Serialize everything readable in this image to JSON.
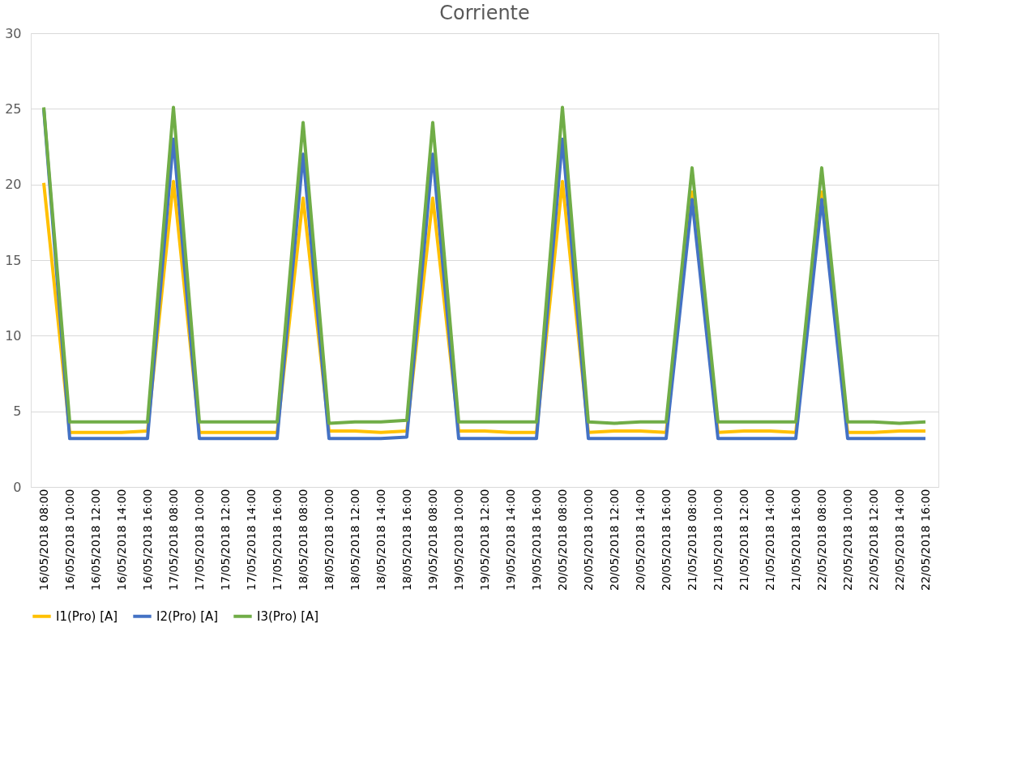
{
  "chart_data": {
    "type": "line",
    "title": "Corriente",
    "categories": [
      "16/05/2018 08:00",
      "16/05/2018 10:00",
      "16/05/2018 12:00",
      "16/05/2018 14:00",
      "16/05/2018 16:00",
      "17/05/2018 08:00",
      "17/05/2018 10:00",
      "17/05/2018 12:00",
      "17/05/2018 14:00",
      "17/05/2018 16:00",
      "18/05/2018 08:00",
      "18/05/2018 10:00",
      "18/05/2018 12:00",
      "18/05/2018 14:00",
      "18/05/2018 16:00",
      "19/05/2018 08:00",
      "19/05/2018 10:00",
      "19/05/2018 12:00",
      "19/05/2018 14:00",
      "19/05/2018 16:00",
      "20/05/2018 08:00",
      "20/05/2018 10:00",
      "20/05/2018 12:00",
      "20/05/2018 14:00",
      "20/05/2018 16:00",
      "21/05/2018 08:00",
      "21/05/2018 10:00",
      "21/05/2018 12:00",
      "21/05/2018 14:00",
      "21/05/2018 16:00",
      "22/05/2018 08:00",
      "22/05/2018 10:00",
      "22/05/2018 12:00",
      "22/05/2018 14:00",
      "22/05/2018 16:00"
    ],
    "series": [
      {
        "name": "I1(Pro) [A]",
        "color": "#ffc000",
        "values": [
          20.1,
          3.6,
          3.6,
          3.6,
          3.7,
          20.2,
          3.6,
          3.6,
          3.6,
          3.6,
          19.1,
          3.7,
          3.7,
          3.6,
          3.7,
          19.1,
          3.7,
          3.7,
          3.6,
          3.6,
          20.2,
          3.6,
          3.7,
          3.7,
          3.6,
          19.5,
          3.6,
          3.7,
          3.7,
          3.6,
          19.5,
          3.6,
          3.6,
          3.7,
          3.7
        ]
      },
      {
        "name": "I2(Pro) [A]",
        "color": "#4472c4",
        "values": [
          25.0,
          3.2,
          3.2,
          3.2,
          3.2,
          23.0,
          3.2,
          3.2,
          3.2,
          3.2,
          22.0,
          3.2,
          3.2,
          3.2,
          3.3,
          22.0,
          3.2,
          3.2,
          3.2,
          3.2,
          23.0,
          3.2,
          3.2,
          3.2,
          3.2,
          19.0,
          3.2,
          3.2,
          3.2,
          3.2,
          19.0,
          3.2,
          3.2,
          3.2,
          3.2
        ]
      },
      {
        "name": "I3(Pro) [A]",
        "color": "#70ad47",
        "values": [
          25.1,
          4.3,
          4.3,
          4.3,
          4.3,
          25.1,
          4.3,
          4.3,
          4.3,
          4.3,
          24.1,
          4.2,
          4.3,
          4.3,
          4.4,
          24.1,
          4.3,
          4.3,
          4.3,
          4.3,
          25.1,
          4.3,
          4.2,
          4.3,
          4.3,
          21.1,
          4.3,
          4.3,
          4.3,
          4.3,
          21.1,
          4.3,
          4.3,
          4.2,
          4.3
        ]
      }
    ],
    "ylim": [
      0,
      30
    ],
    "yticks": [
      0,
      5,
      10,
      15,
      20,
      25,
      30
    ],
    "grid": "y",
    "legend": "bottom",
    "marker": "none",
    "line_style": "solid"
  }
}
